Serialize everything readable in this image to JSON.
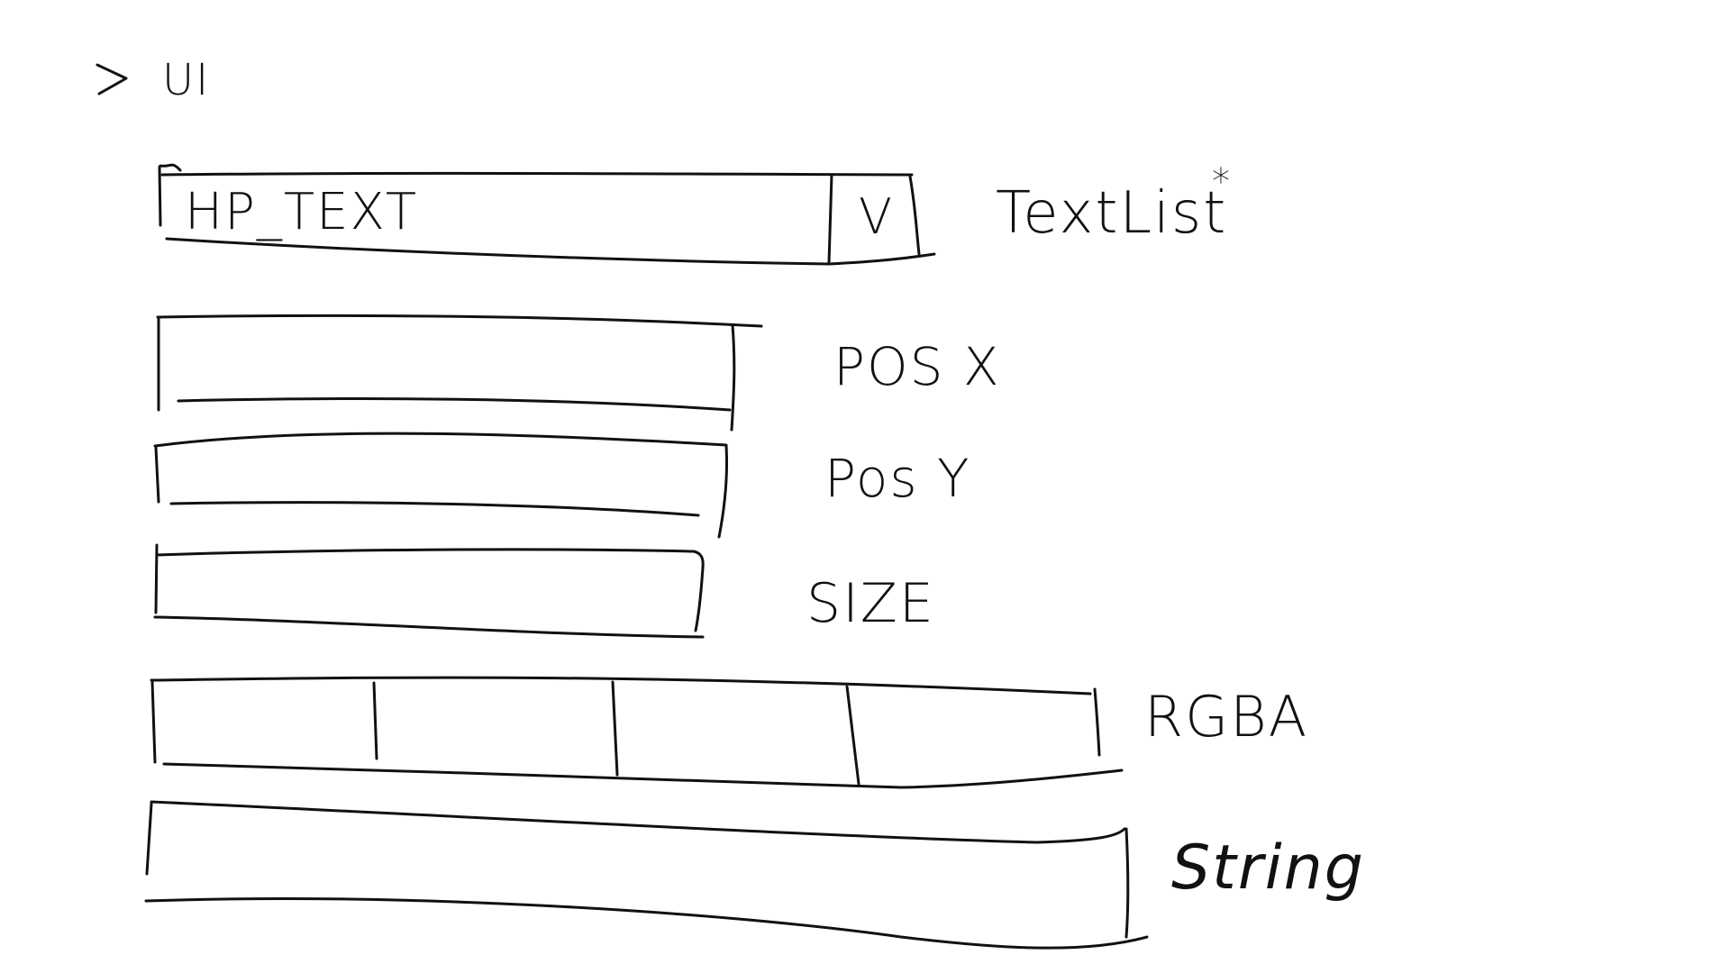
{
  "header": {
    "chevron_glyph": ">",
    "section_label": "UI"
  },
  "text_select": {
    "value": "HP_TEXT",
    "arrow_glyph": "V",
    "label": "TextList",
    "marker": "*"
  },
  "pos_x": {
    "label": "POS X",
    "value": ""
  },
  "pos_y": {
    "label": "Pos Y",
    "value": ""
  },
  "size": {
    "label": "SIZE",
    "value": ""
  },
  "rgba": {
    "label": "RGBA",
    "channels": [
      "",
      "",
      "",
      ""
    ]
  },
  "string": {
    "label": "String",
    "value": ""
  },
  "icons": {
    "collapse": "chevron-right-icon",
    "dropdown": "chevron-down-icon"
  }
}
